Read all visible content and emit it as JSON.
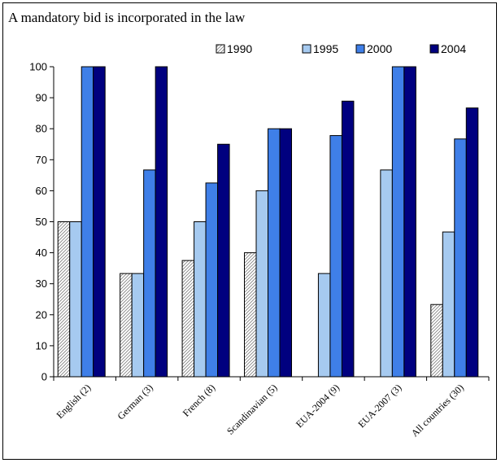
{
  "chart_data": {
    "type": "bar",
    "title": "A mandatory bid is incorporated in the law",
    "categories": [
      "English (2)",
      "German (3)",
      "French (8)",
      "Scandinavian (5)",
      "EUA-2004 (9)",
      "EUA-2007 (3)",
      "All countries (30)"
    ],
    "series": [
      {
        "name": "1990",
        "values": [
          50,
          33.3,
          37.5,
          40,
          0,
          0,
          23.3
        ],
        "color": "#ffffff",
        "pattern": "diagonal-hatch"
      },
      {
        "name": "1995",
        "values": [
          50,
          33.3,
          50,
          60,
          33.3,
          66.7,
          46.7
        ],
        "color": "#a6caf0"
      },
      {
        "name": "2000",
        "values": [
          100,
          66.7,
          62.5,
          80,
          77.8,
          100,
          76.7
        ],
        "color": "#3f7fe8"
      },
      {
        "name": "2004",
        "values": [
          100,
          100,
          75,
          80,
          88.9,
          100,
          86.7
        ],
        "color": "#00007f"
      }
    ],
    "ylim": [
      0,
      100
    ],
    "yticks": [
      "0",
      "10",
      "20",
      "30",
      "40",
      "50",
      "60",
      "70",
      "80",
      "90",
      "100"
    ],
    "xlabel": "",
    "ylabel": "",
    "legend": "top-right",
    "grid": false
  }
}
